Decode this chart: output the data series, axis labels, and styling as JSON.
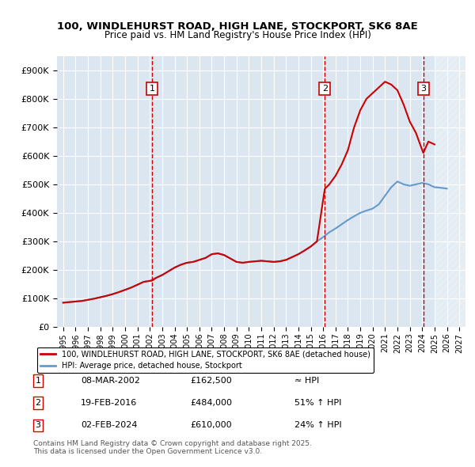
{
  "title_line1": "100, WINDLEHURST ROAD, HIGH LANE, STOCKPORT, SK6 8AE",
  "title_line2": "Price paid vs. HM Land Registry's House Price Index (HPI)",
  "xlim": [
    1994.5,
    2027.5
  ],
  "ylim": [
    0,
    950000
  ],
  "yticks": [
    0,
    100000,
    200000,
    300000,
    400000,
    500000,
    600000,
    700000,
    800000,
    900000
  ],
  "ytick_labels": [
    "£0",
    "£100K",
    "£200K",
    "£300K",
    "£400K",
    "£500K",
    "£600K",
    "£700K",
    "£800K",
    "£900K"
  ],
  "xticks": [
    1995,
    1996,
    1997,
    1998,
    1999,
    2000,
    2001,
    2002,
    2003,
    2004,
    2005,
    2006,
    2007,
    2008,
    2009,
    2010,
    2011,
    2012,
    2013,
    2014,
    2015,
    2016,
    2017,
    2018,
    2019,
    2020,
    2021,
    2022,
    2023,
    2024,
    2025,
    2026,
    2027
  ],
  "sale_dates": [
    2002.19,
    2016.13,
    2024.09
  ],
  "sale_prices": [
    162500,
    484000,
    610000
  ],
  "sale_labels": [
    "1",
    "2",
    "3"
  ],
  "hpi_x": [
    1995,
    1995.5,
    1996,
    1996.5,
    1997,
    1997.5,
    1998,
    1998.5,
    1999,
    1999.5,
    2000,
    2000.5,
    2001,
    2001.5,
    2002,
    2002.5,
    2003,
    2003.5,
    2004,
    2004.5,
    2005,
    2005.5,
    2006,
    2006.5,
    2007,
    2007.5,
    2008,
    2008.5,
    2009,
    2009.5,
    2010,
    2010.5,
    2011,
    2011.5,
    2012,
    2012.5,
    2013,
    2013.5,
    2014,
    2014.5,
    2015,
    2015.5,
    2016,
    2016.5,
    2017,
    2017.5,
    2018,
    2018.5,
    2019,
    2019.5,
    2020,
    2020.5,
    2021,
    2021.5,
    2022,
    2022.5,
    2023,
    2023.5,
    2024,
    2024.5,
    2025,
    2025.5,
    2026
  ],
  "hpi_y": [
    85000,
    87000,
    89000,
    91000,
    95000,
    99000,
    104000,
    109000,
    115000,
    122000,
    130000,
    138000,
    148000,
    158000,
    162000,
    172000,
    182000,
    195000,
    208000,
    218000,
    225000,
    228000,
    235000,
    242000,
    255000,
    258000,
    252000,
    240000,
    228000,
    225000,
    228000,
    230000,
    232000,
    230000,
    228000,
    230000,
    235000,
    245000,
    255000,
    268000,
    282000,
    300000,
    315000,
    332000,
    345000,
    360000,
    375000,
    388000,
    400000,
    408000,
    415000,
    430000,
    460000,
    490000,
    510000,
    500000,
    495000,
    500000,
    505000,
    500000,
    490000,
    488000,
    485000
  ],
  "red_line_x": [
    1995,
    1995.5,
    1996,
    1996.5,
    1997,
    1997.5,
    1998,
    1998.5,
    1999,
    1999.5,
    2000,
    2000.5,
    2001,
    2001.5,
    2002.19,
    2002.5,
    2003,
    2003.5,
    2004,
    2004.5,
    2005,
    2005.5,
    2006,
    2006.5,
    2007,
    2007.5,
    2008,
    2008.5,
    2009,
    2009.5,
    2010,
    2010.5,
    2011,
    2011.5,
    2012,
    2012.5,
    2013,
    2013.5,
    2014,
    2014.5,
    2015,
    2015.5,
    2016.13,
    2016.5,
    2017,
    2017.5,
    2018,
    2018.5,
    2019,
    2019.5,
    2020,
    2020.5,
    2021,
    2021.5,
    2022,
    2022.5,
    2023,
    2023.5,
    2024.09,
    2024.5,
    2025
  ],
  "red_line_y": [
    85000,
    87000,
    89000,
    91000,
    95000,
    99000,
    104000,
    109000,
    115000,
    122000,
    130000,
    138000,
    148000,
    158000,
    162500,
    172000,
    182000,
    195000,
    208000,
    218000,
    225000,
    228000,
    235000,
    242000,
    255000,
    258000,
    252000,
    240000,
    228000,
    225000,
    228000,
    230000,
    232000,
    230000,
    228000,
    230000,
    235000,
    245000,
    255000,
    268000,
    282000,
    300000,
    484000,
    500000,
    530000,
    570000,
    620000,
    700000,
    760000,
    800000,
    820000,
    840000,
    860000,
    850000,
    830000,
    780000,
    720000,
    680000,
    610000,
    650000,
    640000
  ],
  "bg_color": "#dce6f1",
  "grid_color": "#ffffff",
  "red_color": "#cc0000",
  "blue_color": "#6699cc",
  "future_hatch_color": "#c0c0c0",
  "legend_label_red": "100, WINDLEHURST ROAD, HIGH LANE, STOCKPORT, SK6 8AE (detached house)",
  "legend_label_blue": "HPI: Average price, detached house, Stockport",
  "table_rows": [
    [
      "1",
      "08-MAR-2002",
      "£162,500",
      "≈ HPI"
    ],
    [
      "2",
      "19-FEB-2016",
      "£484,000",
      "51% ↑ HPI"
    ],
    [
      "3",
      "02-FEB-2024",
      "£610,000",
      "24% ↑ HPI"
    ]
  ],
  "footer_text": "Contains HM Land Registry data © Crown copyright and database right 2025.\nThis data is licensed under the Open Government Licence v3.0.",
  "future_start": 2025.0
}
